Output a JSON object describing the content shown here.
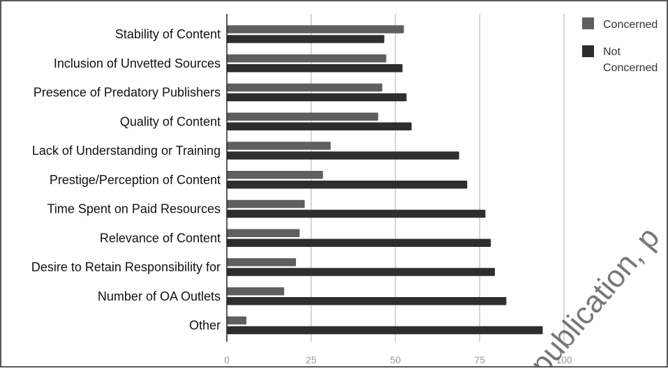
{
  "chart_data": {
    "type": "bar",
    "orientation": "horizontal",
    "title": "",
    "xlabel": "",
    "ylabel": "",
    "xlim": [
      0,
      100
    ],
    "x_ticks": [
      "0",
      "25",
      "50",
      "75",
      "100"
    ],
    "grid": true,
    "legend_position": "top-right",
    "categories": [
      "Stability of Content",
      "Inclusion of Unvetted Sources",
      "Presence of Predatory Publishers",
      "Quality of Content",
      "Lack of Understanding or Training",
      "Prestige/Perception of Content",
      "Time Spent on Paid Resources",
      "Relevance of Content",
      "Desire to Retain Responsibility for",
      "Number of OA Outlets",
      "Other"
    ],
    "series": [
      {
        "name": "Concerned",
        "color": "#5f5f5f",
        "values": [
          52.5,
          47.3,
          46.1,
          44.9,
          30.8,
          28.5,
          23.1,
          21.6,
          20.5,
          17.0,
          5.8
        ]
      },
      {
        "name": "Not Concerned",
        "color": "#2e2e2e",
        "values": [
          46.7,
          52.1,
          53.3,
          54.8,
          68.9,
          71.3,
          76.7,
          78.3,
          79.5,
          82.9,
          93.7
        ]
      }
    ]
  },
  "legend": {
    "concerned_label": "Concerned",
    "not_concerned_line1": "Not",
    "not_concerned_line2": "Concerned"
  },
  "watermark": "publication, p"
}
